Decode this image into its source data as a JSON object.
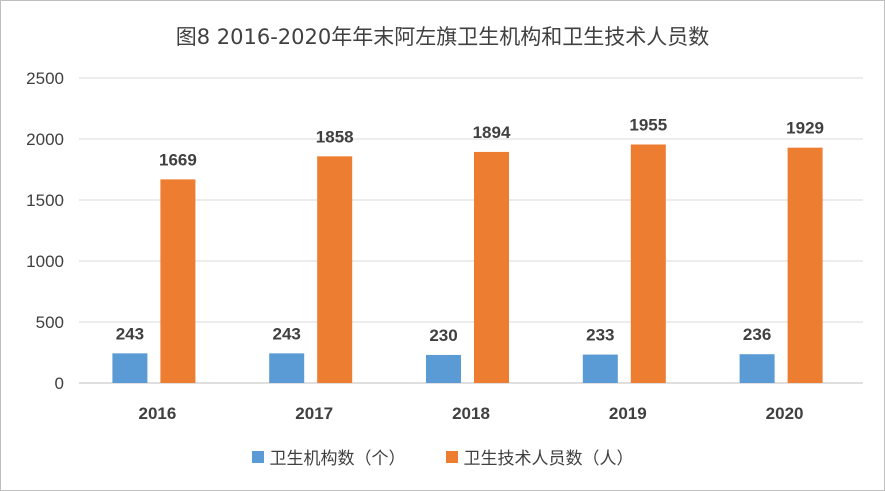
{
  "chart_data": {
    "type": "bar",
    "title": "图8 2016-2020年年末阿左旗卫生机构和卫生技术人员数",
    "categories": [
      "2016",
      "2017",
      "2018",
      "2019",
      "2020"
    ],
    "series": [
      {
        "name": "卫生机构数（个）",
        "values": [
          243,
          243,
          230,
          233,
          236
        ],
        "color": "#5b9bd5"
      },
      {
        "name": "卫生技术人员数（人）",
        "values": [
          1669,
          1858,
          1894,
          1955,
          1929
        ],
        "color": "#ed7d31"
      }
    ],
    "ylim": [
      0,
      2500
    ],
    "yticks": [
      0,
      500,
      1000,
      1500,
      2000,
      2500
    ],
    "grid": true,
    "legend": "bottom"
  }
}
